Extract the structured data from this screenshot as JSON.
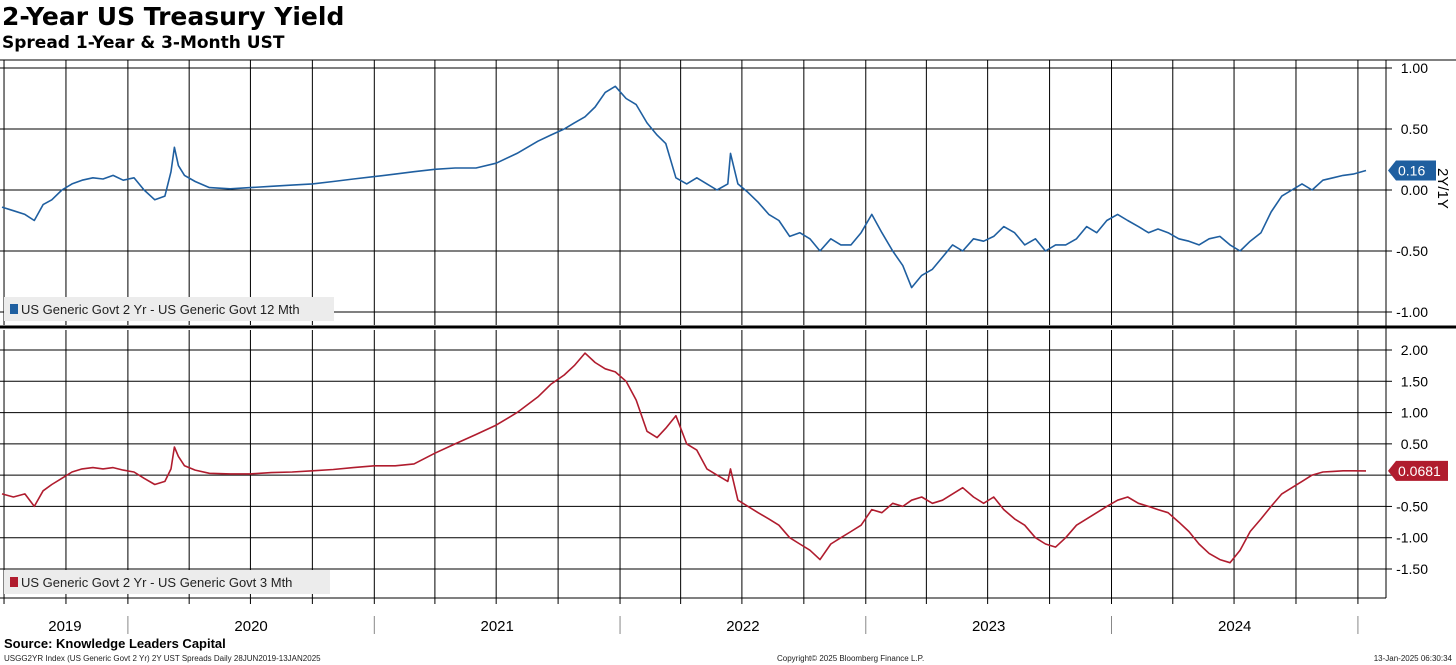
{
  "header": {
    "title": "2-Year US Treasury Yield",
    "subtitle": "Spread 1-Year & 3-Month UST"
  },
  "footer": {
    "source": "Source: Knowledge Leaders Capital",
    "index_line": "USGG2YR Index (US Generic Govt 2 Yr) 2Y UST Spreads  Daily 28JUN2019-13JAN2025",
    "copyright": "Copyright© 2025 Bloomberg Finance L.P.",
    "timestamp": "13-Jan-2025 06:30:34"
  },
  "colors": {
    "series_2y_12m": "#1f5fa0",
    "series_2y_3m": "#b01c2e",
    "grid": "#000000"
  },
  "chart_data": [
    {
      "type": "line",
      "title": "",
      "xlabel": "",
      "ylabel": "2Y/1Y",
      "ylim": [
        -1.0,
        1.0
      ],
      "yticks": [
        1.0,
        0.5,
        0.0,
        -0.5,
        -1.0
      ],
      "ytick_labels": [
        "1.00",
        "0.50",
        "0.00",
        "-0.50",
        "-1.00"
      ],
      "grid": true,
      "legend_position": "bottom-left",
      "last_value_label": "0.16",
      "series": [
        {
          "name": "US Generic Govt 2 Yr - US Generic Govt 12 Mth",
          "x": [
            "2019-06-28",
            "2019-07-15",
            "2019-08-01",
            "2019-08-15",
            "2019-08-28",
            "2019-09-10",
            "2019-09-25",
            "2019-10-10",
            "2019-10-25",
            "2019-11-10",
            "2019-11-25",
            "2019-12-10",
            "2019-12-25",
            "2020-01-10",
            "2020-01-25",
            "2020-02-10",
            "2020-02-25",
            "2020-03-05",
            "2020-03-10",
            "2020-03-16",
            "2020-03-25",
            "2020-04-10",
            "2020-05-01",
            "2020-06-01",
            "2020-07-01",
            "2020-08-01",
            "2020-09-01",
            "2020-10-01",
            "2020-11-01",
            "2020-12-01",
            "2021-01-01",
            "2021-02-01",
            "2021-03-01",
            "2021-04-01",
            "2021-05-01",
            "2021-06-01",
            "2021-07-01",
            "2021-08-01",
            "2021-09-01",
            "2021-09-20",
            "2021-10-10",
            "2021-10-25",
            "2021-11-10",
            "2021-11-25",
            "2021-12-10",
            "2021-12-25",
            "2022-01-10",
            "2022-01-25",
            "2022-02-10",
            "2022-02-25",
            "2022-03-10",
            "2022-03-25",
            "2022-04-10",
            "2022-04-25",
            "2022-05-10",
            "2022-05-25",
            "2022-06-10",
            "2022-06-14",
            "2022-06-25",
            "2022-07-10",
            "2022-07-25",
            "2022-08-10",
            "2022-08-25",
            "2022-09-10",
            "2022-09-25",
            "2022-10-10",
            "2022-10-25",
            "2022-11-10",
            "2022-11-25",
            "2022-12-10",
            "2022-12-25",
            "2023-01-10",
            "2023-01-25",
            "2023-02-10",
            "2023-02-25",
            "2023-03-10",
            "2023-03-25",
            "2023-04-10",
            "2023-04-25",
            "2023-05-10",
            "2023-05-25",
            "2023-06-10",
            "2023-06-25",
            "2023-07-10",
            "2023-07-25",
            "2023-08-10",
            "2023-08-25",
            "2023-09-10",
            "2023-09-25",
            "2023-10-10",
            "2023-10-25",
            "2023-11-10",
            "2023-11-25",
            "2023-12-10",
            "2023-12-25",
            "2024-01-10",
            "2024-01-25",
            "2024-02-10",
            "2024-02-25",
            "2024-03-10",
            "2024-03-25",
            "2024-04-10",
            "2024-04-25",
            "2024-05-10",
            "2024-05-25",
            "2024-06-10",
            "2024-06-25",
            "2024-07-10",
            "2024-07-25",
            "2024-08-10",
            "2024-08-25",
            "2024-09-10",
            "2024-09-25",
            "2024-10-10",
            "2024-10-25",
            "2024-11-10",
            "2024-11-25",
            "2024-12-10",
            "2024-12-25",
            "2025-01-13"
          ],
          "y": [
            -0.14,
            -0.17,
            -0.2,
            -0.25,
            -0.12,
            -0.08,
            0.0,
            0.05,
            0.08,
            0.1,
            0.09,
            0.12,
            0.08,
            0.1,
            0.0,
            -0.08,
            -0.05,
            0.15,
            0.35,
            0.2,
            0.12,
            0.07,
            0.02,
            0.01,
            0.02,
            0.03,
            0.04,
            0.05,
            0.07,
            0.09,
            0.11,
            0.13,
            0.15,
            0.17,
            0.18,
            0.18,
            0.22,
            0.3,
            0.4,
            0.45,
            0.5,
            0.55,
            0.6,
            0.68,
            0.8,
            0.85,
            0.75,
            0.7,
            0.55,
            0.45,
            0.38,
            0.1,
            0.05,
            0.1,
            0.05,
            0.0,
            0.05,
            0.3,
            0.05,
            -0.02,
            -0.1,
            -0.2,
            -0.25,
            -0.38,
            -0.35,
            -0.4,
            -0.5,
            -0.4,
            -0.45,
            -0.45,
            -0.35,
            -0.2,
            -0.35,
            -0.5,
            -0.62,
            -0.8,
            -0.7,
            -0.65,
            -0.55,
            -0.45,
            -0.5,
            -0.4,
            -0.42,
            -0.38,
            -0.3,
            -0.35,
            -0.45,
            -0.4,
            -0.5,
            -0.45,
            -0.45,
            -0.4,
            -0.3,
            -0.35,
            -0.25,
            -0.2,
            -0.25,
            -0.3,
            -0.35,
            -0.32,
            -0.35,
            -0.4,
            -0.42,
            -0.45,
            -0.4,
            -0.38,
            -0.45,
            -0.5,
            -0.42,
            -0.35,
            -0.18,
            -0.05,
            0.0,
            0.05,
            0.0,
            0.08,
            0.1,
            0.12,
            0.13,
            0.16
          ]
        }
      ]
    },
    {
      "type": "line",
      "title": "",
      "xlabel": "",
      "ylabel": "",
      "ylim": [
        -1.6,
        2.2
      ],
      "yticks": [
        2.0,
        1.5,
        1.0,
        0.5,
        0.0,
        -0.5,
        -1.0,
        -1.5
      ],
      "ytick_labels": [
        "2.00",
        "1.50",
        "1.00",
        "0.50",
        "",
        "-0.50",
        "-1.00",
        "-1.50"
      ],
      "grid": true,
      "legend_position": "bottom-left",
      "last_value_label": "0.0681",
      "x_tick_labels": [
        "2019",
        "2020",
        "2021",
        "2022",
        "2023",
        "2024"
      ],
      "series": [
        {
          "name": "US Generic Govt 2 Yr - US Generic Govt 3 Mth",
          "x": [
            "2019-06-28",
            "2019-07-15",
            "2019-08-01",
            "2019-08-15",
            "2019-08-28",
            "2019-09-10",
            "2019-09-25",
            "2019-10-10",
            "2019-10-25",
            "2019-11-10",
            "2019-11-25",
            "2019-12-10",
            "2019-12-25",
            "2020-01-10",
            "2020-01-25",
            "2020-02-10",
            "2020-02-25",
            "2020-03-05",
            "2020-03-10",
            "2020-03-16",
            "2020-03-25",
            "2020-04-10",
            "2020-05-01",
            "2020-06-01",
            "2020-07-01",
            "2020-08-01",
            "2020-09-01",
            "2020-10-01",
            "2020-11-01",
            "2020-12-01",
            "2021-01-01",
            "2021-02-01",
            "2021-03-01",
            "2021-04-01",
            "2021-05-01",
            "2021-06-01",
            "2021-07-01",
            "2021-08-01",
            "2021-09-01",
            "2021-09-20",
            "2021-10-10",
            "2021-10-25",
            "2021-11-10",
            "2021-11-25",
            "2021-12-10",
            "2021-12-25",
            "2022-01-10",
            "2022-01-25",
            "2022-02-10",
            "2022-02-25",
            "2022-03-10",
            "2022-03-25",
            "2022-04-10",
            "2022-04-25",
            "2022-05-10",
            "2022-05-25",
            "2022-06-10",
            "2022-06-14",
            "2022-06-25",
            "2022-07-10",
            "2022-07-25",
            "2022-08-10",
            "2022-08-25",
            "2022-09-10",
            "2022-09-25",
            "2022-10-10",
            "2022-10-25",
            "2022-11-10",
            "2022-11-25",
            "2022-12-10",
            "2022-12-25",
            "2023-01-10",
            "2023-01-25",
            "2023-02-10",
            "2023-02-25",
            "2023-03-10",
            "2023-03-25",
            "2023-04-10",
            "2023-04-25",
            "2023-05-10",
            "2023-05-25",
            "2023-06-10",
            "2023-06-25",
            "2023-07-10",
            "2023-07-25",
            "2023-08-10",
            "2023-08-25",
            "2023-09-10",
            "2023-09-25",
            "2023-10-10",
            "2023-10-25",
            "2023-11-10",
            "2023-11-25",
            "2023-12-10",
            "2023-12-25",
            "2024-01-10",
            "2024-01-25",
            "2024-02-10",
            "2024-02-25",
            "2024-03-10",
            "2024-03-25",
            "2024-04-10",
            "2024-04-25",
            "2024-05-10",
            "2024-05-25",
            "2024-06-10",
            "2024-06-25",
            "2024-07-10",
            "2024-07-25",
            "2024-08-10",
            "2024-08-25",
            "2024-09-10",
            "2024-09-25",
            "2024-10-10",
            "2024-10-25",
            "2024-11-10",
            "2024-11-25",
            "2024-12-10",
            "2024-12-25",
            "2025-01-13"
          ],
          "y": [
            -0.3,
            -0.35,
            -0.3,
            -0.5,
            -0.25,
            -0.15,
            -0.05,
            0.05,
            0.1,
            0.12,
            0.1,
            0.12,
            0.08,
            0.05,
            -0.05,
            -0.15,
            -0.1,
            0.1,
            0.45,
            0.3,
            0.15,
            0.08,
            0.03,
            0.02,
            0.02,
            0.04,
            0.05,
            0.07,
            0.09,
            0.12,
            0.15,
            0.15,
            0.18,
            0.35,
            0.5,
            0.65,
            0.8,
            1.0,
            1.25,
            1.45,
            1.6,
            1.75,
            1.95,
            1.8,
            1.7,
            1.65,
            1.5,
            1.2,
            0.7,
            0.6,
            0.75,
            0.95,
            0.5,
            0.4,
            0.1,
            0.0,
            -0.1,
            0.1,
            -0.4,
            -0.5,
            -0.6,
            -0.7,
            -0.8,
            -1.0,
            -1.1,
            -1.2,
            -1.35,
            -1.1,
            -1.0,
            -0.9,
            -0.8,
            -0.55,
            -0.6,
            -0.45,
            -0.5,
            -0.4,
            -0.35,
            -0.45,
            -0.4,
            -0.3,
            -0.2,
            -0.35,
            -0.45,
            -0.35,
            -0.55,
            -0.7,
            -0.8,
            -1.0,
            -1.1,
            -1.15,
            -1.0,
            -0.8,
            -0.7,
            -0.6,
            -0.5,
            -0.4,
            -0.35,
            -0.45,
            -0.5,
            -0.55,
            -0.6,
            -0.75,
            -0.9,
            -1.1,
            -1.25,
            -1.35,
            -1.4,
            -1.2,
            -0.9,
            -0.7,
            -0.5,
            -0.3,
            -0.2,
            -0.1,
            0.0,
            0.05,
            0.06,
            0.07,
            0.07,
            0.0681
          ]
        }
      ]
    }
  ]
}
